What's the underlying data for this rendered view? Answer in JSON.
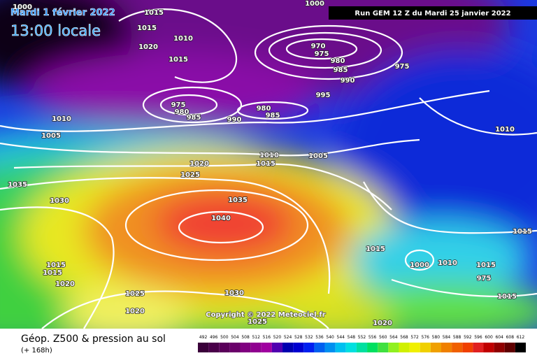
{
  "header": {
    "date": "Mardi 1 février 2022",
    "time": "13:00 locale",
    "run": "Run GEM 12 Z du Mardi 25 janvier 2022"
  },
  "map": {
    "isobar_labels": [
      1000,
      1015,
      1000,
      1015,
      1010,
      1020,
      1015,
      970,
      975,
      980,
      985,
      990,
      975,
      995,
      975,
      980,
      985,
      980,
      985,
      990,
      1010,
      1005,
      1010,
      1010,
      1015,
      1005,
      1020,
      1025,
      1035,
      1030,
      1035,
      1040,
      1015,
      1015,
      1000,
      1010,
      1015,
      975,
      1015,
      1015,
      1020,
      1025,
      1030,
      1015,
      1020,
      1025,
      1020
    ],
    "copyright": "Copyright © 2022 Meteociel.fr"
  },
  "footer": {
    "title": "Géop. Z500 & pression au sol",
    "lead": "(+ 168h)",
    "scale": {
      "values": [
        492,
        496,
        500,
        504,
        508,
        512,
        516,
        520,
        524,
        528,
        532,
        536,
        540,
        544,
        548,
        552,
        556,
        560,
        564,
        568,
        572,
        576,
        580,
        584,
        588,
        592,
        596,
        600,
        604,
        608,
        612
      ],
      "colors": [
        "#3a003a",
        "#4a004a",
        "#5a005a",
        "#6a006a",
        "#800080",
        "#900090",
        "#a000a0",
        "#5000b0",
        "#0000b0",
        "#0000d0",
        "#0020f0",
        "#0060f0",
        "#0090f0",
        "#00c0f0",
        "#00e0e0",
        "#00e0a0",
        "#00e060",
        "#40e040",
        "#90f020",
        "#d0f000",
        "#f0f000",
        "#f0d000",
        "#f0a000",
        "#f08000",
        "#f06000",
        "#f04000",
        "#e02020",
        "#c00000",
        "#900000",
        "#600000",
        "#000000"
      ]
    }
  }
}
